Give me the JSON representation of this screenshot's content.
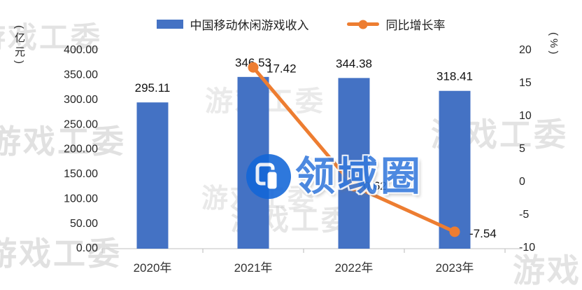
{
  "chart_data": {
    "type": "bar",
    "title": "",
    "categories": [
      "2020年",
      "2021年",
      "2022年",
      "2023年"
    ],
    "series": [
      {
        "name": "中国移动休闲游戏收入",
        "type": "bar",
        "axis": "left",
        "color": "#4472C4",
        "values": [
          295.11,
          346.53,
          344.38,
          318.41
        ],
        "labels": [
          "295.11",
          "346.53",
          "344.38",
          "318.41"
        ]
      },
      {
        "name": "同比增长率",
        "type": "line",
        "axis": "right",
        "color": "#ED7D31",
        "values": [
          null,
          17.42,
          -0.62,
          -7.54
        ],
        "labels": [
          null,
          "17.42",
          "-0.62",
          "-7.54"
        ]
      }
    ],
    "left_axis": {
      "unit": "(亿元)",
      "min": 0,
      "max": 400,
      "ticks": [
        "400.00",
        "350.00",
        "300.00",
        "250.00",
        "200.00",
        "150.00",
        "100.00",
        "50.00",
        "0.00"
      ]
    },
    "right_axis": {
      "unit": "(%)",
      "min": -10,
      "max": 20,
      "ticks": [
        "20",
        "15",
        "10",
        "5",
        "0",
        "-5",
        "-10"
      ]
    },
    "legend_position": "top",
    "grid": false
  },
  "watermarks": {
    "background_text": "游戏工委",
    "center_text": "领域圈"
  }
}
